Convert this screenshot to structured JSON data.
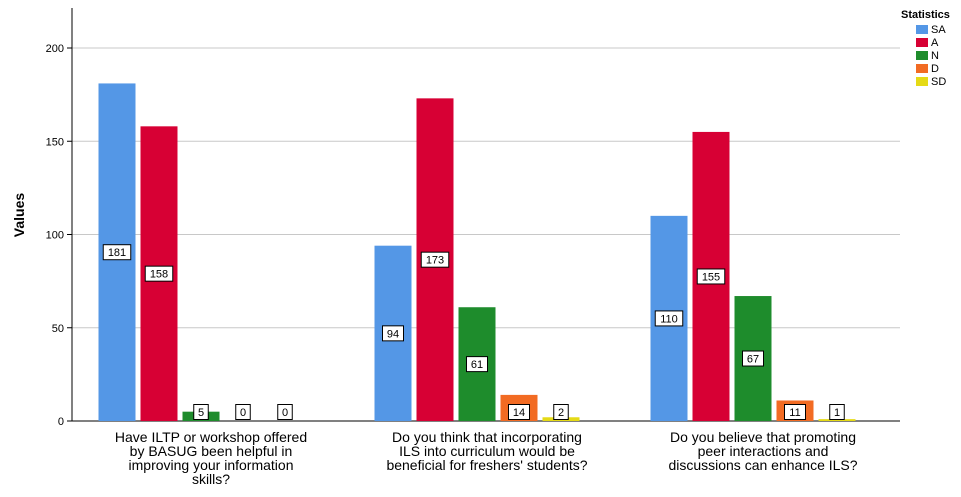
{
  "chart_data": {
    "type": "bar",
    "title": "",
    "xlabel": "",
    "ylabel": "Values",
    "ylim": [
      0,
      210
    ],
    "yticks": [
      0,
      50,
      100,
      150,
      200
    ],
    "grid": "horizontal",
    "legend_title": "Statistics",
    "legend_position": "top-right",
    "categories": [
      [
        "Have ILTP or workshop offered",
        "by BASUG been helpful in",
        "improving your information",
        "skills?"
      ],
      [
        "Do you think that incorporating",
        "ILS into curriculum would be",
        "beneficial for freshers' students?"
      ],
      [
        "Do you believe that promoting",
        "peer interactions and",
        "discussions can enhance ILS?"
      ]
    ],
    "series": [
      {
        "name": "SA",
        "color": "#5497E6",
        "values": [
          181,
          94,
          110
        ]
      },
      {
        "name": "A",
        "color": "#D70034",
        "values": [
          158,
          173,
          155
        ]
      },
      {
        "name": "N",
        "color": "#1E8C2C",
        "values": [
          5,
          61,
          67
        ]
      },
      {
        "name": "D",
        "color": "#F26B23",
        "values": [
          0,
          14,
          11
        ]
      },
      {
        "name": "SD",
        "color": "#E5DA16",
        "values": [
          0,
          2,
          1
        ]
      }
    ]
  }
}
